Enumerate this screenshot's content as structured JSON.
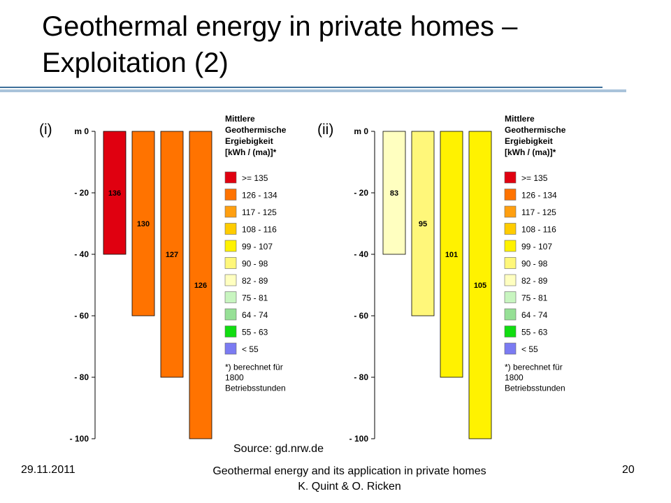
{
  "slide": {
    "title_line1": "Geothermal energy in private homes –",
    "title_line2": "Exploitation (2)",
    "source": "Source: gd.nrw.de",
    "footer_date": "29.11.2011",
    "footer_title": "Geothermal energy and its application in private homes",
    "footer_authors": "K. Quint & O. Ricken",
    "footer_page": "20"
  },
  "legend": {
    "title": [
      "Mittlere",
      "Geothermische",
      "Ergiebigkeit",
      "[kWh / (ma)]*"
    ],
    "items": [
      {
        "label": ">= 135",
        "color": "#e00010"
      },
      {
        "label": "126 - 134",
        "color": "#ff7300"
      },
      {
        "label": "117 - 125",
        "color": "#ff9f10"
      },
      {
        "label": "108 - 116",
        "color": "#ffcc00"
      },
      {
        "label": "99 - 107",
        "color": "#fff200"
      },
      {
        "label": "90 - 98",
        "color": "#fff77a"
      },
      {
        "label": "82 - 89",
        "color": "#ffffc0"
      },
      {
        "label": "75 - 81",
        "color": "#c8f5c0"
      },
      {
        "label": "64 - 74",
        "color": "#96e096"
      },
      {
        "label": "55 - 63",
        "color": "#11dd11"
      },
      {
        "label": "< 55",
        "color": "#7b7bf2"
      }
    ],
    "note": [
      "*) berechnet für",
      "1800",
      "Betriebsstunden"
    ]
  },
  "chart_data": [
    {
      "type": "bar",
      "panel_label": "(i)",
      "ylim": [
        0,
        100
      ],
      "yticks": [
        0,
        -20,
        -40,
        -60,
        -80,
        -100
      ],
      "ytick_labels": [
        "m 0",
        "- 20",
        "- 40",
        "- 60",
        "- 80",
        "- 100"
      ],
      "bars": [
        {
          "depth": 40,
          "value": 136,
          "label": "136",
          "color": "#e00010"
        },
        {
          "depth": 60,
          "value": 130,
          "label": "130",
          "color": "#ff7300"
        },
        {
          "depth": 80,
          "value": 127,
          "label": "127",
          "color": "#ff7300"
        },
        {
          "depth": 100,
          "value": 126,
          "label": "126",
          "color": "#ff7300"
        }
      ]
    },
    {
      "type": "bar",
      "panel_label": "(ii)",
      "ylim": [
        0,
        100
      ],
      "yticks": [
        0,
        -20,
        -40,
        -60,
        -80,
        -100
      ],
      "ytick_labels": [
        "m 0",
        "- 20",
        "- 40",
        "- 60",
        "- 80",
        "- 100"
      ],
      "bars": [
        {
          "depth": 40,
          "value": 83,
          "label": "83",
          "color": "#ffffc0"
        },
        {
          "depth": 60,
          "value": 95,
          "label": "95",
          "color": "#fff77a"
        },
        {
          "depth": 80,
          "value": 101,
          "label": "101",
          "color": "#fff200"
        },
        {
          "depth": 100,
          "value": 105,
          "label": "105",
          "color": "#fff200"
        }
      ]
    }
  ]
}
